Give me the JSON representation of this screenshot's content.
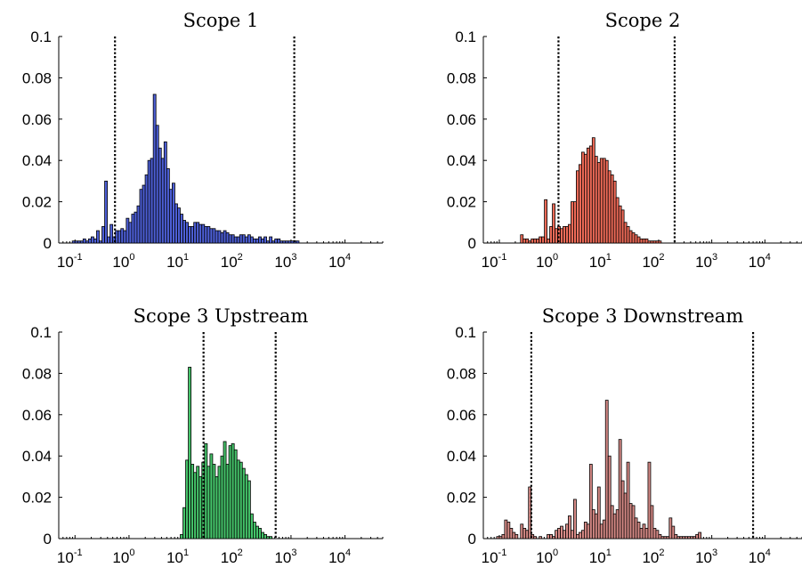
{
  "chart_data": [
    {
      "type": "bar",
      "title": "Scope 1",
      "color": "#4d5fd6",
      "xscale": "log",
      "xlim": [
        0.05,
        50000
      ],
      "ylim": [
        0,
        0.1
      ],
      "xticks": [
        {
          "base": "10",
          "exp": "-1"
        },
        {
          "base": "10",
          "exp": "0"
        },
        {
          "base": "10",
          "exp": "1"
        },
        {
          "base": "10",
          "exp": "2"
        },
        {
          "base": "10",
          "exp": "3"
        },
        {
          "base": "10",
          "exp": "4"
        }
      ],
      "yticks": [
        "0",
        "0.02",
        "0.04",
        "0.06",
        "0.08",
        "0.1"
      ],
      "thresholds": [
        0.55,
        1150
      ],
      "bins": {
        "start": 0.05,
        "bins_per_decade": 20,
        "values": [
          0,
          0,
          0,
          0,
          0,
          0.001,
          0.001,
          0.001,
          0.001,
          0.002,
          0.001,
          0.002,
          0.003,
          0.002,
          0.006,
          0.001,
          0.008,
          0.03,
          0.003,
          0.009,
          0.003,
          0.006,
          0.006,
          0.007,
          0.006,
          0.012,
          0.01,
          0.014,
          0.015,
          0.018,
          0.026,
          0.028,
          0.033,
          0.04,
          0.041,
          0.072,
          0.057,
          0.046,
          0.041,
          0.049,
          0.036,
          0.026,
          0.029,
          0.019,
          0.017,
          0.014,
          0.011,
          0.01,
          0.008,
          0.008,
          0.01,
          0.01,
          0.009,
          0.009,
          0.008,
          0.008,
          0.007,
          0.007,
          0.006,
          0.006,
          0.005,
          0.006,
          0.005,
          0.004,
          0.004,
          0.003,
          0.003,
          0.004,
          0.004,
          0.003,
          0.004,
          0.003,
          0.002,
          0.002,
          0.003,
          0.002,
          0.003,
          0.001,
          0.003,
          0.001,
          0.002,
          0.002,
          0.001,
          0.001,
          0.001,
          0.001,
          0.001,
          0.001,
          0.001,
          0,
          0,
          0,
          0,
          0,
          0,
          0,
          0,
          0,
          0,
          0,
          0
        ]
      }
    },
    {
      "type": "bar",
      "title": "Scope 2",
      "color": "#f06b58",
      "xscale": "log",
      "xlim": [
        0.05,
        50000
      ],
      "ylim": [
        0,
        0.1
      ],
      "xticks": [
        {
          "base": "10",
          "exp": "-1"
        },
        {
          "base": "10",
          "exp": "0"
        },
        {
          "base": "10",
          "exp": "1"
        },
        {
          "base": "10",
          "exp": "2"
        },
        {
          "base": "10",
          "exp": "3"
        },
        {
          "base": "10",
          "exp": "4"
        }
      ],
      "yticks": [
        "0",
        "0.02",
        "0.04",
        "0.06",
        "0.08",
        "0.1"
      ],
      "thresholds": [
        1.3,
        200
      ],
      "bins": {
        "start": 0.05,
        "bins_per_decade": 20,
        "values": [
          0,
          0,
          0,
          0,
          0,
          0,
          0,
          0,
          0,
          0,
          0,
          0,
          0,
          0,
          0.004,
          0.002,
          0.002,
          0.001,
          0.002,
          0.002,
          0.002,
          0.003,
          0.003,
          0.021,
          0.002,
          0.008,
          0.019,
          0.007,
          0.008,
          0.007,
          0.008,
          0.008,
          0.009,
          0.02,
          0.02,
          0.035,
          0.038,
          0.044,
          0.043,
          0.046,
          0.047,
          0.051,
          0.042,
          0.039,
          0.041,
          0.041,
          0.04,
          0.035,
          0.033,
          0.03,
          0.022,
          0.018,
          0.016,
          0.01,
          0.008,
          0.006,
          0.005,
          0.004,
          0.003,
          0.002,
          0.002,
          0.002,
          0.001,
          0.001,
          0.001,
          0.001,
          0.001,
          0,
          0,
          0,
          0,
          0,
          0,
          0,
          0,
          0,
          0,
          0,
          0,
          0,
          0,
          0,
          0,
          0,
          0,
          0,
          0,
          0,
          0,
          0,
          0,
          0,
          0,
          0,
          0,
          0,
          0,
          0,
          0,
          0,
          0
        ]
      }
    },
    {
      "type": "bar",
      "title": "Scope 3 Upstream",
      "color": "#45c46a",
      "xscale": "log",
      "xlim": [
        0.05,
        50000
      ],
      "ylim": [
        0,
        0.1
      ],
      "xticks": [
        {
          "base": "10",
          "exp": "-1"
        },
        {
          "base": "10",
          "exp": "0"
        },
        {
          "base": "10",
          "exp": "1"
        },
        {
          "base": "10",
          "exp": "2"
        },
        {
          "base": "10",
          "exp": "3"
        },
        {
          "base": "10",
          "exp": "4"
        }
      ],
      "yticks": [
        "0",
        "0.02",
        "0.04",
        "0.06",
        "0.08",
        "0.1"
      ],
      "thresholds": [
        24,
        520
      ],
      "bins": {
        "start": 0.05,
        "bins_per_decade": 20,
        "values": [
          0,
          0,
          0,
          0,
          0,
          0,
          0,
          0,
          0,
          0,
          0,
          0,
          0,
          0,
          0,
          0,
          0,
          0,
          0,
          0,
          0,
          0,
          0,
          0,
          0,
          0,
          0,
          0,
          0,
          0,
          0,
          0,
          0,
          0,
          0,
          0,
          0,
          0,
          0,
          0,
          0,
          0,
          0,
          0,
          0,
          0.002,
          0.015,
          0.038,
          0.083,
          0.036,
          0.032,
          0.035,
          0.03,
          0.037,
          0.046,
          0.035,
          0.041,
          0.036,
          0.03,
          0.035,
          0.04,
          0.047,
          0.036,
          0.045,
          0.046,
          0.043,
          0.038,
          0.037,
          0.034,
          0.031,
          0.028,
          0.012,
          0.008,
          0.006,
          0.005,
          0.003,
          0.002,
          0.001,
          0.001,
          0,
          0,
          0,
          0,
          0,
          0,
          0,
          0,
          0,
          0,
          0,
          0,
          0,
          0,
          0,
          0,
          0,
          0,
          0,
          0,
          0,
          0
        ]
      }
    },
    {
      "type": "bar",
      "title": "Scope 3 Downstream",
      "color": "#d68a86",
      "xscale": "log",
      "xlim": [
        0.05,
        50000
      ],
      "ylim": [
        0,
        0.1
      ],
      "xticks": [
        {
          "base": "10",
          "exp": "-1"
        },
        {
          "base": "10",
          "exp": "0"
        },
        {
          "base": "10",
          "exp": "1"
        },
        {
          "base": "10",
          "exp": "2"
        },
        {
          "base": "10",
          "exp": "3"
        },
        {
          "base": "10",
          "exp": "4"
        }
      ],
      "yticks": [
        "0",
        "0.02",
        "0.04",
        "0.06",
        "0.08",
        "0.1"
      ],
      "thresholds": [
        0.4,
        6000
      ],
      "bins": {
        "start": 0.05,
        "bins_per_decade": 20,
        "values": [
          0,
          0,
          0,
          0,
          0,
          0.001,
          0.001,
          0.002,
          0.009,
          0.008,
          0.005,
          0.003,
          0.002,
          0,
          0.007,
          0.005,
          0.004,
          0.025,
          0.002,
          0.001,
          0,
          0.001,
          0,
          0,
          0.002,
          0.002,
          0.001,
          0.004,
          0.005,
          0.006,
          0.004,
          0.007,
          0.011,
          0.004,
          0.019,
          0.002,
          0.003,
          0.004,
          0.008,
          0.007,
          0.036,
          0.014,
          0.012,
          0.025,
          0.007,
          0.009,
          0.067,
          0.04,
          0.016,
          0.012,
          0.014,
          0.048,
          0.028,
          0.022,
          0.037,
          0.017,
          0.016,
          0.01,
          0.008,
          0.005,
          0.007,
          0.005,
          0.037,
          0.016,
          0.005,
          0.004,
          0.002,
          0.001,
          0.001,
          0.001,
          0.01,
          0.006,
          0.002,
          0.001,
          0.001,
          0.001,
          0.001,
          0.001,
          0.001,
          0.001,
          0.002,
          0.003,
          0,
          0,
          0,
          0,
          0,
          0,
          0,
          0,
          0,
          0,
          0,
          0,
          0,
          0,
          0,
          0,
          0,
          0,
          0
        ]
      }
    }
  ]
}
